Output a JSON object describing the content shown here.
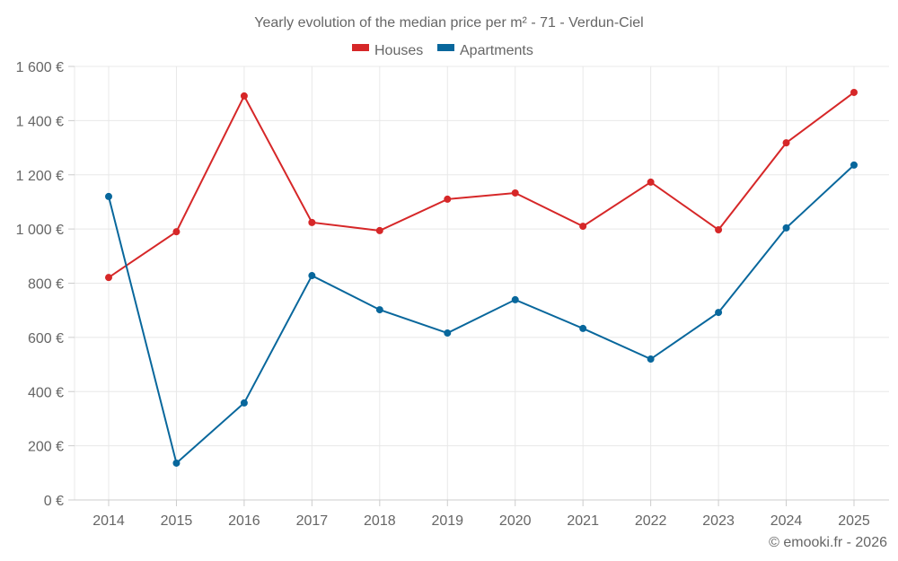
{
  "chart_data": {
    "type": "line",
    "title": "Yearly evolution of the median price per m² - 71 - Verdun-Ciel",
    "xlabel": "",
    "ylabel": "",
    "x": [
      "2014",
      "2015",
      "2016",
      "2017",
      "2018",
      "2019",
      "2020",
      "2021",
      "2022",
      "2023",
      "2024",
      "2025"
    ],
    "ylim": [
      0,
      1600
    ],
    "yticks": [
      0,
      200,
      400,
      600,
      800,
      1000,
      1200,
      1400,
      1600
    ],
    "ytick_labels": [
      "0 €",
      "200 €",
      "400 €",
      "600 €",
      "800 €",
      "1 000 €",
      "1 200 €",
      "1 400 €",
      "1 600 €"
    ],
    "grid": true,
    "legend_position": "top-center",
    "series": [
      {
        "name": "Houses",
        "color": "#d62728",
        "values": [
          821,
          990,
          1491,
          1024,
          994,
          1110,
          1133,
          1010,
          1173,
          997,
          1318,
          1504
        ]
      },
      {
        "name": "Apartments",
        "color": "#08679c",
        "values": [
          1120,
          136,
          358,
          828,
          702,
          616,
          739,
          633,
          520,
          692,
          1004,
          1236
        ]
      }
    ]
  },
  "credit": "© emooki.fr - 2026"
}
